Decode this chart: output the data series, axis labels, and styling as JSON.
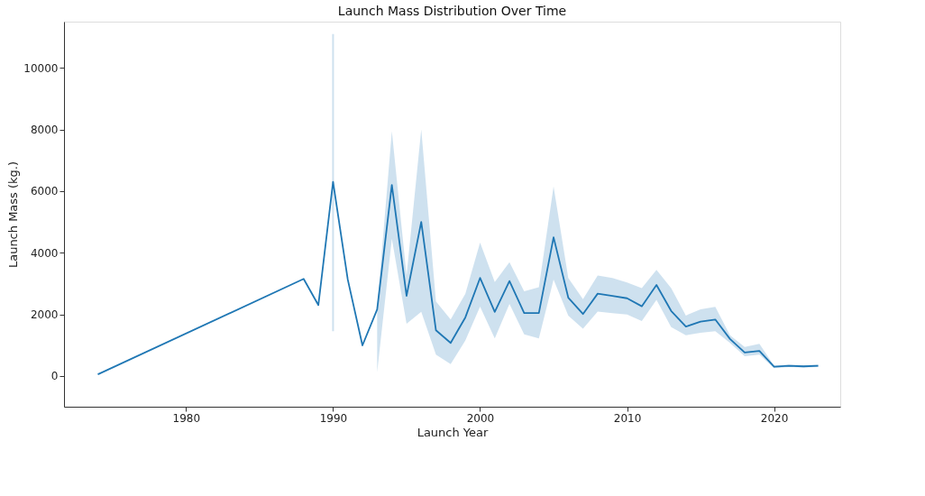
{
  "chart_data": {
    "type": "line",
    "title": "Launch Mass Distribution Over Time",
    "xlabel": "Launch Year",
    "ylabel": "Launch Mass (kg.)",
    "x": [
      1974,
      1988,
      1989,
      1990,
      1991,
      1992,
      1993,
      1994,
      1995,
      1996,
      1997,
      1998,
      1999,
      2000,
      2001,
      2002,
      2003,
      2004,
      2005,
      2006,
      2007,
      2008,
      2009,
      2010,
      2011,
      2012,
      2013,
      2014,
      2015,
      2016,
      2017,
      2018,
      2019,
      2020,
      2021,
      2022,
      2023
    ],
    "series": [
      {
        "color": "#1f77b4",
        "values": [
          50,
          3150,
          2300,
          6300,
          3130,
          990,
          2160,
          6200,
          2600,
          5000,
          1480,
          1070,
          1900,
          3180,
          2080,
          3080,
          2040,
          2040,
          4500,
          2540,
          2010,
          2670,
          2600,
          2520,
          2260,
          2950,
          2110,
          1600,
          1760,
          1830,
          1200,
          760,
          810,
          300,
          330,
          310,
          330
        ],
        "lower": [
          null,
          null,
          null,
          1450,
          null,
          null,
          120,
          4450,
          1690,
          2080,
          690,
          380,
          1150,
          2250,
          1220,
          2340,
          1350,
          1220,
          3130,
          1960,
          1530,
          2090,
          2040,
          1990,
          1780,
          2470,
          1580,
          1320,
          1400,
          1450,
          1070,
          640,
          690,
          250,
          290,
          270,
          290
        ],
        "upper": [
          null,
          null,
          null,
          11100,
          null,
          null,
          2200,
          7940,
          3260,
          8000,
          2420,
          1830,
          2670,
          4330,
          3050,
          3690,
          2750,
          2880,
          6150,
          3180,
          2490,
          3260,
          3180,
          3030,
          2850,
          3440,
          2850,
          1960,
          2160,
          2240,
          1320,
          940,
          1040,
          330,
          370,
          350,
          370
        ]
      }
    ],
    "xlim": [
      1971.7,
      2024.5
    ],
    "ylim": [
      -1000,
      11500
    ],
    "xticks": [
      1980,
      1990,
      2000,
      2010,
      2020
    ],
    "yticks": [
      0,
      2000,
      4000,
      6000,
      8000,
      10000
    ],
    "grid": false,
    "legend": false,
    "marker": "none",
    "line_style": "solid"
  }
}
